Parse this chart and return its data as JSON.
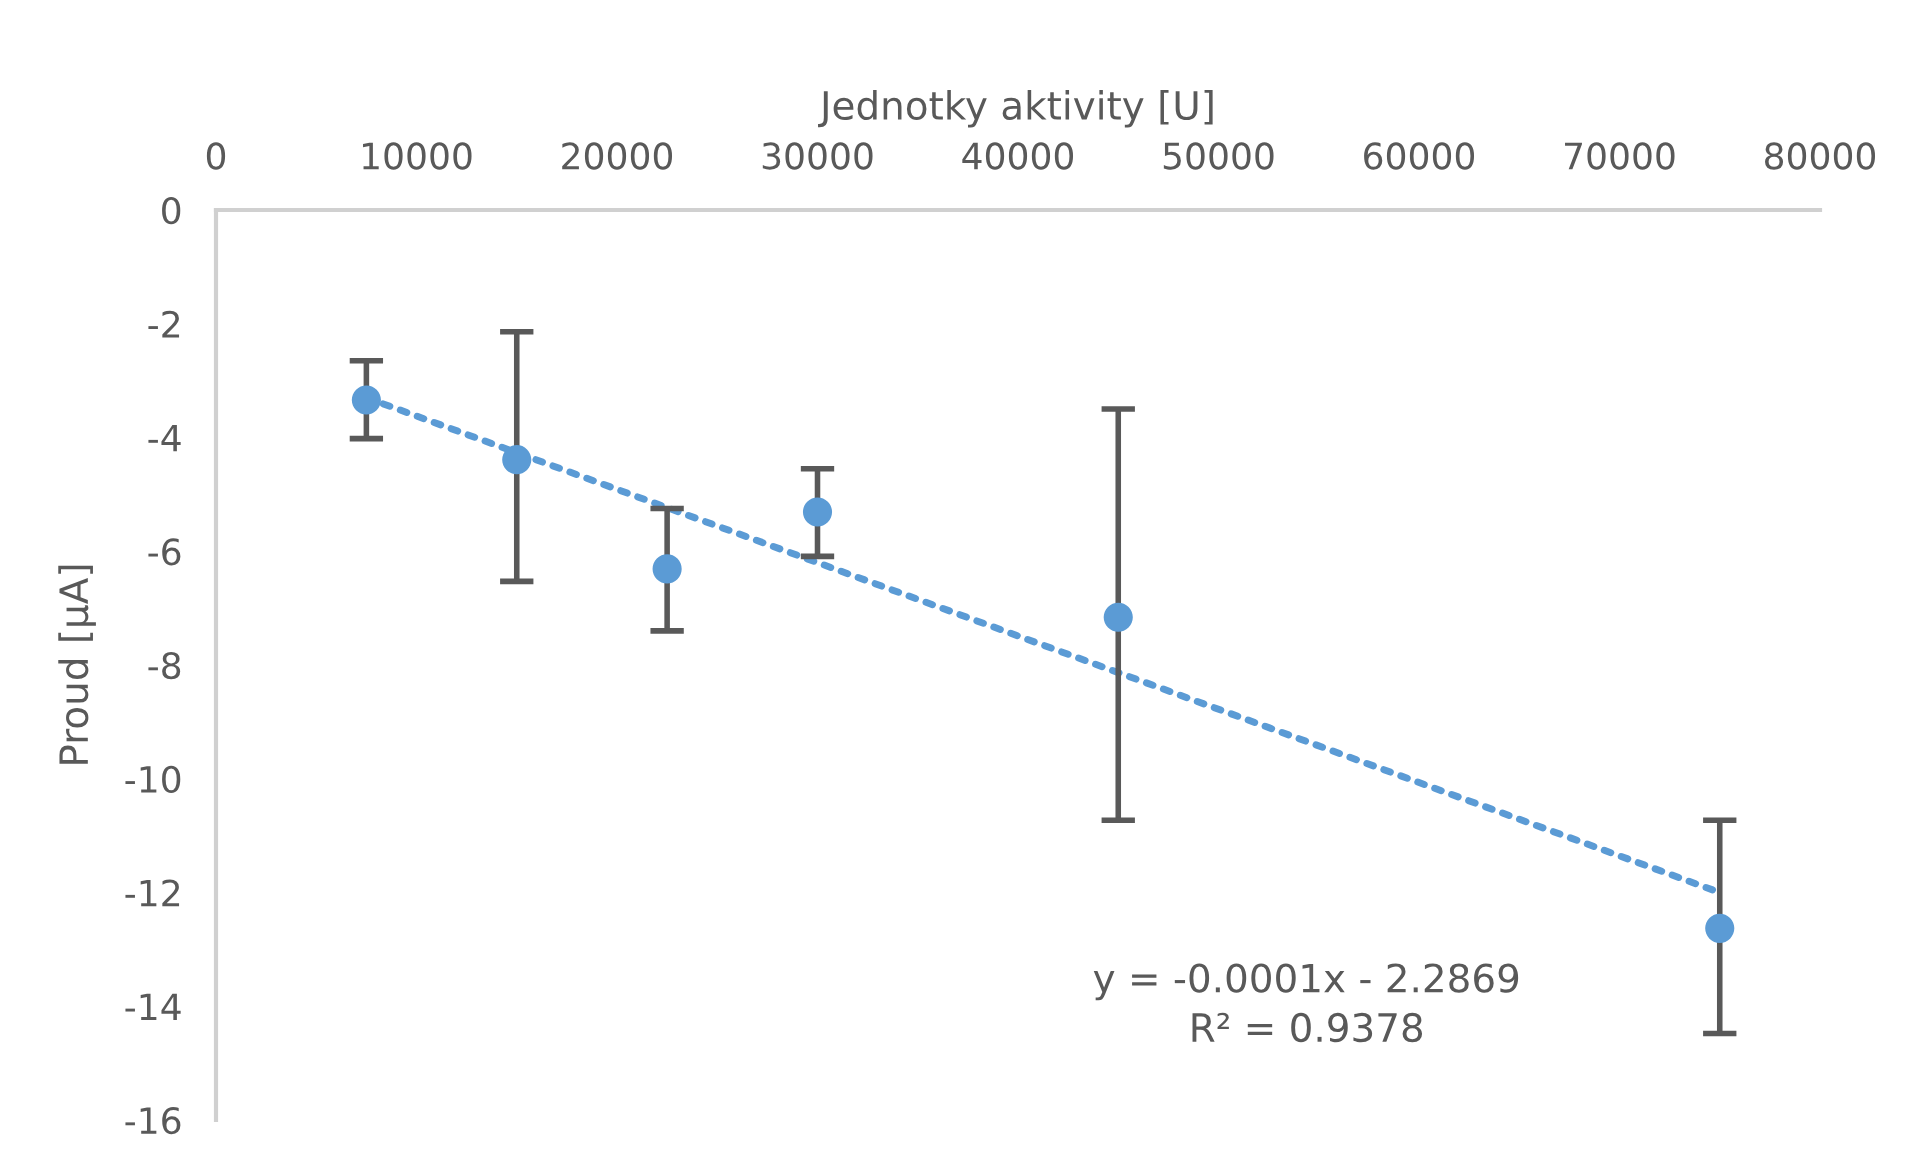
{
  "chart_data": {
    "type": "scatter",
    "xlabel": "Jednotky aktivity [U]",
    "ylabel": "Proud [μA]",
    "xlim": [
      0,
      80000
    ],
    "xticks": [
      0,
      10000,
      20000,
      30000,
      40000,
      50000,
      60000,
      70000,
      80000
    ],
    "ylim": [
      -16,
      0
    ],
    "yticks": [
      0,
      -2,
      -4,
      -6,
      -8,
      -10,
      -12,
      -14,
      -16
    ],
    "grid": false,
    "legend": false,
    "series": [
      {
        "marker": "circle",
        "color": "#5b9bd5",
        "x": [
          7500,
          15000,
          22500,
          30000,
          45000,
          75000
        ],
        "values": [
          -3.34,
          -4.39,
          -6.31,
          -5.31,
          -7.16,
          -12.63
        ],
        "errors": [
          [
            -4.02,
            -2.65
          ],
          [
            -6.53,
            -2.14
          ],
          [
            -7.4,
            -5.25
          ],
          [
            -6.09,
            -4.55
          ],
          [
            -10.73,
            -3.5
          ],
          [
            -14.48,
            -10.73
          ]
        ]
      },
      {
        "type": "line",
        "color": "#5b9bd5",
        "line_style": "dotted",
        "x": [
          7500,
          75000
        ],
        "values": [
          -3.3,
          -12.0
        ]
      }
    ],
    "annotations": [
      "y = -0.0001x - 2.2869\nR² = 0.9378"
    ]
  }
}
